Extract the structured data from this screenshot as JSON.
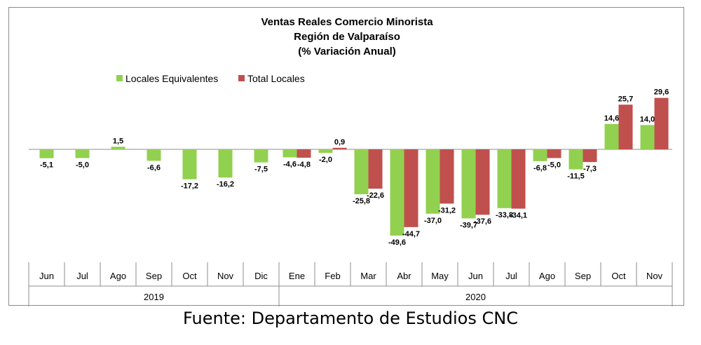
{
  "chart_data": {
    "type": "bar",
    "title_lines": [
      "Ventas Reales Comercio Minorista",
      "Región de Valparaíso",
      "(% Variación Anual)"
    ],
    "categories": [
      "Jun",
      "Jul",
      "Ago",
      "Sep",
      "Oct",
      "Nov",
      "Dic",
      "Ene",
      "Feb",
      "Mar",
      "Abr",
      "May",
      "Jun",
      "Jul",
      "Ago",
      "Sep",
      "Oct",
      "Nov"
    ],
    "year_groups": [
      {
        "label": "2019",
        "count": 7
      },
      {
        "label": "2020",
        "count": 11
      }
    ],
    "series": [
      {
        "name": "Locales Equivalentes",
        "color": "#92d050",
        "values": [
          -5.1,
          -5.0,
          1.5,
          -6.6,
          -17.2,
          -16.2,
          -7.5,
          -4.6,
          -2.0,
          -25.8,
          -49.6,
          -37.0,
          -39.7,
          -33.8,
          -6.8,
          -11.5,
          14.6,
          14.0
        ]
      },
      {
        "name": "Total Locales",
        "color": "#c0504d",
        "values": [
          null,
          null,
          null,
          null,
          null,
          null,
          null,
          -4.8,
          0.9,
          -22.6,
          -44.7,
          -31.2,
          -37.6,
          -34.1,
          -5.0,
          -7.3,
          25.7,
          29.6
        ]
      }
    ],
    "data_labels": {
      "Locales Equivalentes": [
        "-5,1",
        "-5,0",
        "1,5",
        "-6,6",
        "-17,2",
        "-16,2",
        "-7,5",
        "-4,6",
        "-2,0",
        "-25,8",
        "-49,6",
        "-37,0",
        "-39,7",
        "-33,8",
        "-6,8",
        "-11,5",
        "14,6",
        "14,0"
      ],
      "Total Locales": [
        "",
        "",
        "",
        "",
        "",
        "",
        "",
        "-4,8",
        "0,9",
        "-22,6",
        "-44,7",
        "-31,2",
        "-37,6",
        "-34,1",
        "-5,0",
        "-7,3",
        "25,7",
        "29,6"
      ]
    },
    "legend_position": "top-left",
    "grid": false
  },
  "source": "Fuente: Departamento de Estudios CNC"
}
